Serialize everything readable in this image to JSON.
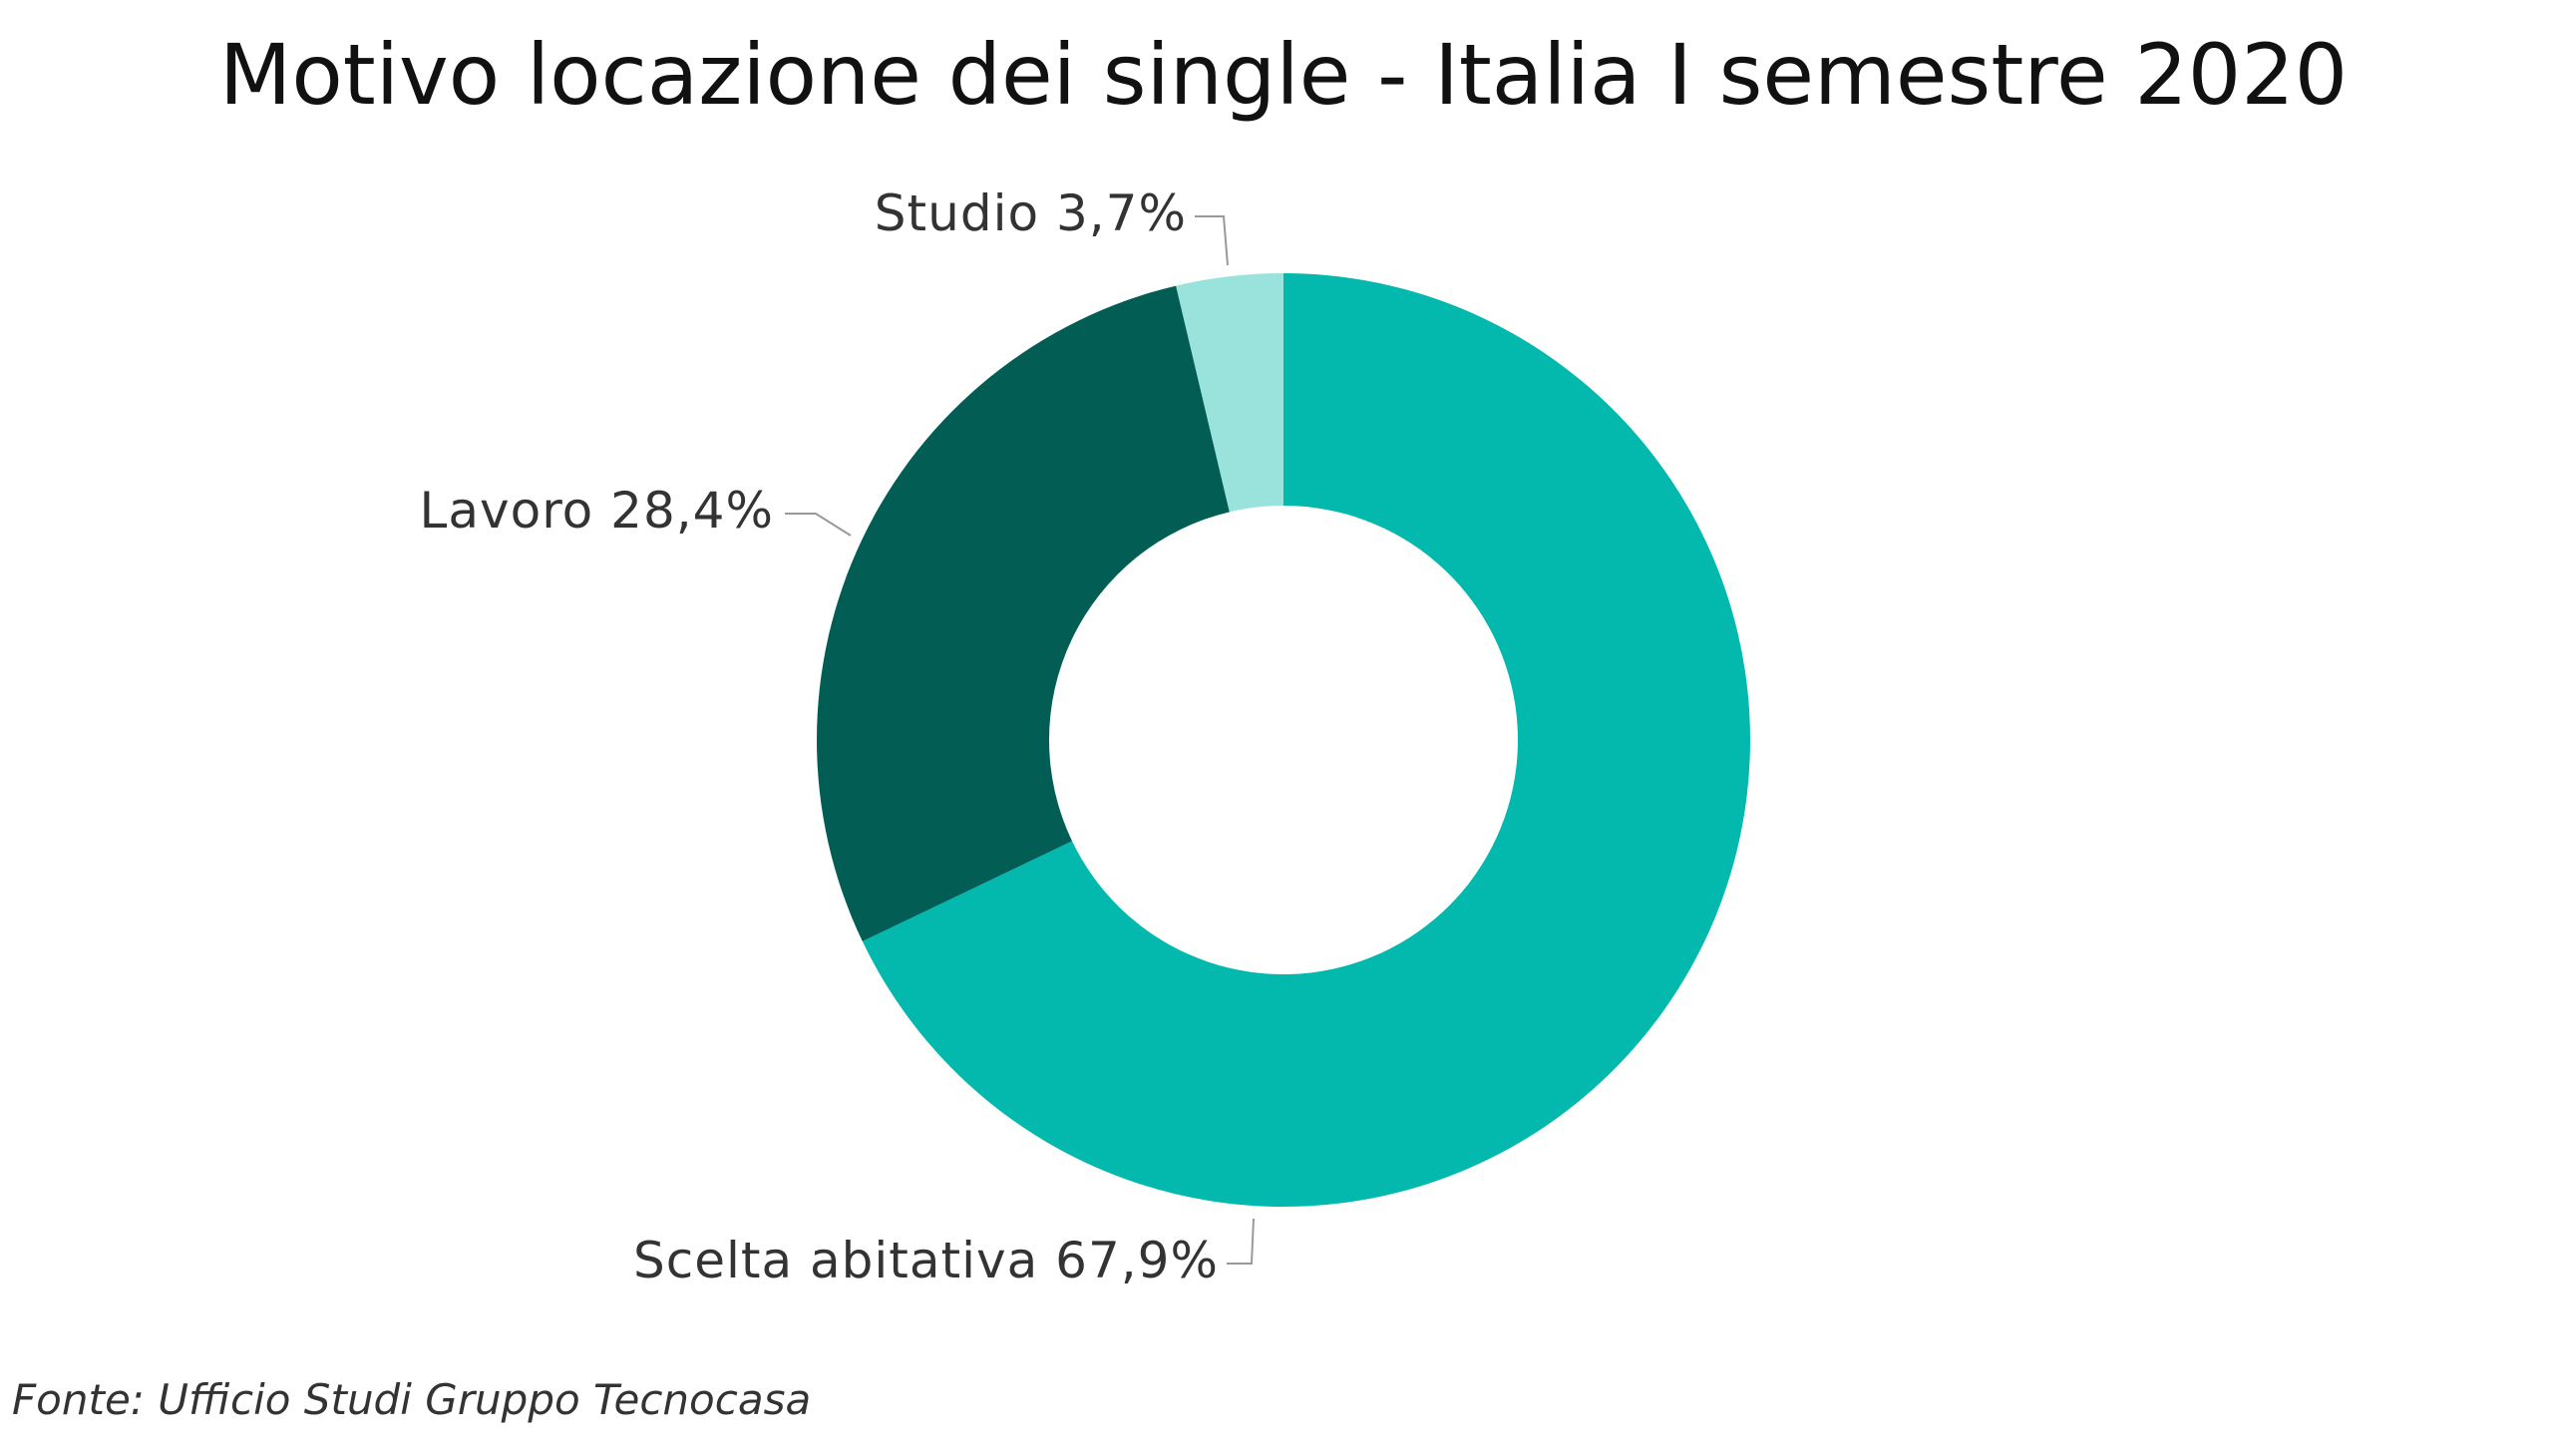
{
  "chart_data": {
    "type": "donut",
    "title": "Motivo locazione dei single - Italia I semestre 2020",
    "categories": [
      "Scelta abitativa",
      "Lavoro",
      "Studio"
    ],
    "values": [
      67.9,
      28.4,
      3.7
    ],
    "value_labels": [
      "67,9%",
      "28,4%",
      "3,7%"
    ],
    "colors": [
      "#03b8ac",
      "#025e55",
      "#99e3dc"
    ],
    "source": "Fonte: Ufficio Studi Gruppo Tecnocasa"
  }
}
